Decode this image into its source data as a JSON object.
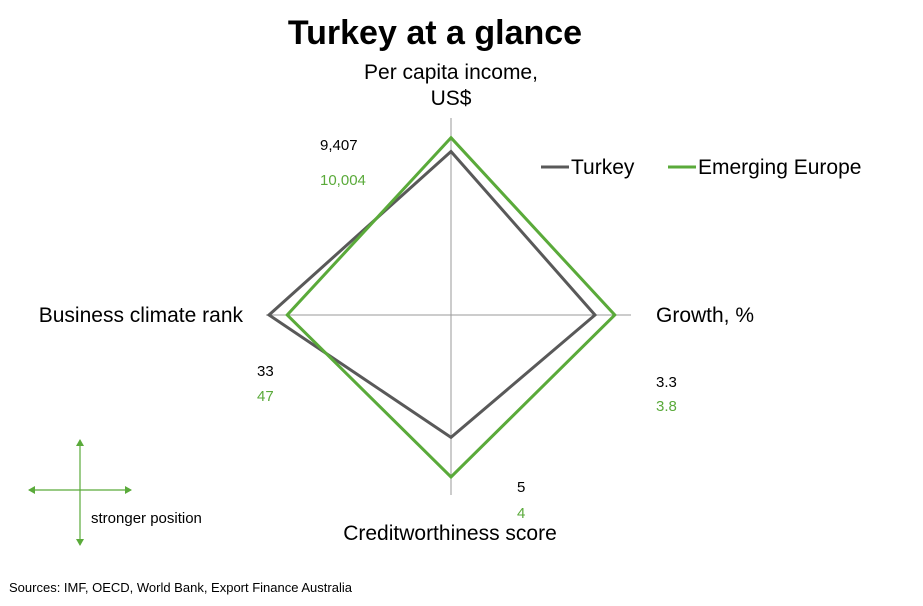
{
  "colors": {
    "turkey": "#595959",
    "emerging_europe": "#5aaa3a",
    "axis": "#9a9a9a",
    "text": "#000000"
  },
  "chart_data": {
    "type": "radar",
    "title": "Turkey at a glance",
    "axes": [
      {
        "key": "income",
        "label_lines": [
          "Per capita income,",
          "US$"
        ]
      },
      {
        "key": "growth",
        "label_lines": [
          "Growth, %"
        ]
      },
      {
        "key": "credit",
        "label_lines": [
          "Creditworthiness score"
        ]
      },
      {
        "key": "business",
        "label_lines": [
          "Business climate rank"
        ]
      }
    ],
    "series": [
      {
        "name": "Turkey",
        "color": "#595959",
        "values": {
          "income": 9407,
          "growth": 3.3,
          "credit": 5,
          "business": 33
        },
        "labels": {
          "income": "9,407",
          "growth": "3.3",
          "credit": "5",
          "business": "33"
        },
        "relative_position": {
          "income": 0.83,
          "growth": 0.8,
          "credit": 0.68,
          "business": 1.0
        }
      },
      {
        "name": "Emerging Europe",
        "color": "#5aaa3a",
        "values": {
          "income": 10004,
          "growth": 3.8,
          "credit": 4,
          "business": 47
        },
        "labels": {
          "income": "10,004",
          "growth": "3.8",
          "credit": "4",
          "business": "47"
        },
        "relative_position": {
          "income": 0.9,
          "growth": 0.91,
          "credit": 0.9,
          "business": 0.9
        }
      }
    ],
    "legend": {
      "placement": "top-right",
      "items": [
        "Turkey",
        "Emerging Europe"
      ]
    },
    "note": "stronger position",
    "source": "Sources: IMF, OECD, World Bank, Export Finance Australia"
  }
}
